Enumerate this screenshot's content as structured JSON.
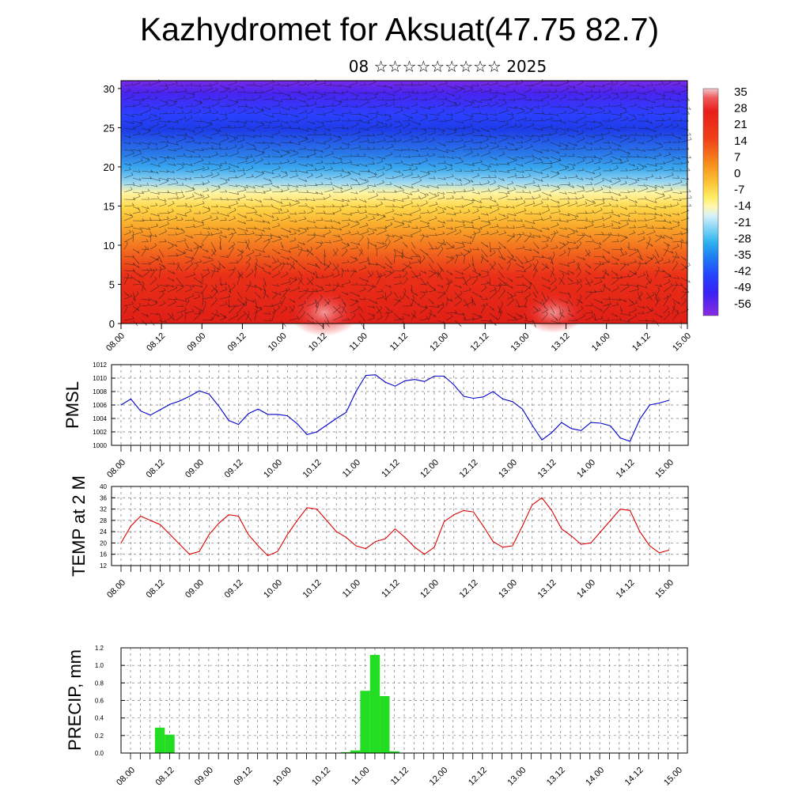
{
  "title": "Kazhydromet for Aksuat(47.75 82.7)",
  "subtitle": "08 ☆☆☆☆☆☆☆☆☆ 2025",
  "chart_data": [
    {
      "type": "heatmap",
      "y_ticks": [
        0,
        5,
        10,
        15,
        20,
        25,
        30
      ],
      "ylim": [
        0,
        31
      ],
      "x_ticks": [
        "08.00",
        "08.12",
        "09.00",
        "09.12",
        "10.00",
        "10.12",
        "11.00",
        "11.12",
        "12.00",
        "12.12",
        "13.00",
        "13.12",
        "14.00",
        "14.12",
        "15.00"
      ],
      "colorbar_ticks": [
        35,
        28,
        21,
        14,
        7,
        0,
        -7,
        -14,
        -21,
        -28,
        -35,
        -42,
        -49,
        -56
      ],
      "colors": {
        "hot": "#e8231a",
        "warm": "#f7941d",
        "mild": "#ffee55",
        "cold": "#37b6f0",
        "cool": "#2e5bff",
        "coldest": "#6a18e0"
      }
    },
    {
      "type": "line",
      "ylabel": "PMSL",
      "ylim": [
        1000,
        1012
      ],
      "y_ticks": [
        1000,
        1002,
        1004,
        1006,
        1008,
        1010,
        1012
      ],
      "x_ticks": [
        "08.00",
        "08.12",
        "09.00",
        "09.12",
        "10.00",
        "10.12",
        "11.00",
        "11.12",
        "12.00",
        "12.12",
        "13.00",
        "13.12",
        "14.00",
        "14.12",
        "15.00"
      ],
      "color": "#0000cc",
      "x": [
        0,
        3,
        6,
        9,
        12,
        15,
        18,
        21,
        24,
        27,
        30,
        33,
        36,
        39,
        42,
        45,
        48,
        51,
        54,
        57,
        60,
        63,
        66,
        69,
        72,
        75,
        78,
        81,
        84,
        87,
        90,
        93,
        96,
        99,
        102,
        105,
        108,
        111,
        114,
        117,
        120,
        123,
        126,
        129,
        132,
        135,
        138,
        141,
        144,
        147,
        150,
        153,
        156,
        159,
        162,
        165,
        168
      ],
      "values": [
        1006.0,
        1006.9,
        1005.1,
        1004.5,
        1005.3,
        1006.1,
        1006.6,
        1007.3,
        1008.1,
        1007.6,
        1005.8,
        1003.7,
        1003.1,
        1004.7,
        1005.4,
        1004.6,
        1004.6,
        1004.4,
        1003.2,
        1001.6,
        1002.0,
        1003.0,
        1004.0,
        1004.9,
        1008.0,
        1010.4,
        1010.5,
        1009.4,
        1008.8,
        1009.6,
        1009.8,
        1009.5,
        1010.3,
        1010.3,
        1009.0,
        1007.3,
        1007.0,
        1007.2,
        1008.0,
        1006.9,
        1006.5,
        1005.4,
        1003.0,
        1000.8,
        1001.9,
        1003.4,
        1002.5,
        1002.2,
        1003.4,
        1003.3,
        1002.9,
        1001.1,
        1000.6,
        1003.9,
        1006.0,
        1006.3,
        1006.7
      ]
    },
    {
      "type": "line",
      "ylabel": "TEMP at 2 M",
      "ylim": [
        12,
        40
      ],
      "y_ticks": [
        12,
        16,
        20,
        24,
        28,
        32,
        36,
        40
      ],
      "x_ticks": [
        "08.00",
        "08.12",
        "09.00",
        "09.12",
        "10.00",
        "10.12",
        "11.00",
        "11.12",
        "12.00",
        "12.12",
        "13.00",
        "13.12",
        "14.00",
        "14.12",
        "15.00"
      ],
      "color": "#dd0000",
      "x": [
        0,
        3,
        6,
        9,
        12,
        15,
        18,
        21,
        24,
        27,
        30,
        33,
        36,
        39,
        42,
        45,
        48,
        51,
        54,
        57,
        60,
        63,
        66,
        69,
        72,
        75,
        78,
        81,
        84,
        87,
        90,
        93,
        96,
        99,
        102,
        105,
        108,
        111,
        114,
        117,
        120,
        123,
        126,
        129,
        132,
        135,
        138,
        141,
        144,
        147,
        150,
        153,
        156,
        159,
        162,
        165,
        168
      ],
      "values": [
        20,
        26,
        29.5,
        28,
        26.5,
        23,
        19.5,
        16,
        17,
        23,
        27,
        30,
        29.5,
        23,
        19,
        15.5,
        17,
        23,
        28,
        32.5,
        32,
        28,
        24,
        22,
        19,
        18,
        20.5,
        21.5,
        25,
        22,
        18.5,
        16,
        18.5,
        27.5,
        30,
        31.5,
        31,
        26,
        20.5,
        18.5,
        19,
        26,
        33.5,
        36,
        31.5,
        25,
        22.5,
        19.5,
        20,
        24,
        28,
        32,
        31.5,
        24,
        19,
        16.5,
        17.5
      ]
    },
    {
      "type": "bar",
      "ylabel": "PRECIP, mm",
      "ylim": [
        0,
        1.2
      ],
      "y_ticks": [
        0.0,
        0.2,
        0.4,
        0.6,
        0.8,
        1.0,
        1.2
      ],
      "x_ticks": [
        "08.00",
        "08.12",
        "09.00",
        "09.12",
        "10.00",
        "10.12",
        "11.00",
        "11.12",
        "12.00",
        "12.12",
        "13.00",
        "13.12",
        "14.00",
        "14.12",
        "15.00"
      ],
      "color": "#22dd22",
      "bars": [
        {
          "x": 9,
          "value": 0.29
        },
        {
          "x": 12,
          "value": 0.21
        },
        {
          "x": 66,
          "value": 0.01
        },
        {
          "x": 69,
          "value": 0.03
        },
        {
          "x": 72,
          "value": 0.71
        },
        {
          "x": 75,
          "value": 1.12
        },
        {
          "x": 78,
          "value": 0.65
        },
        {
          "x": 81,
          "value": 0.02
        }
      ]
    }
  ]
}
